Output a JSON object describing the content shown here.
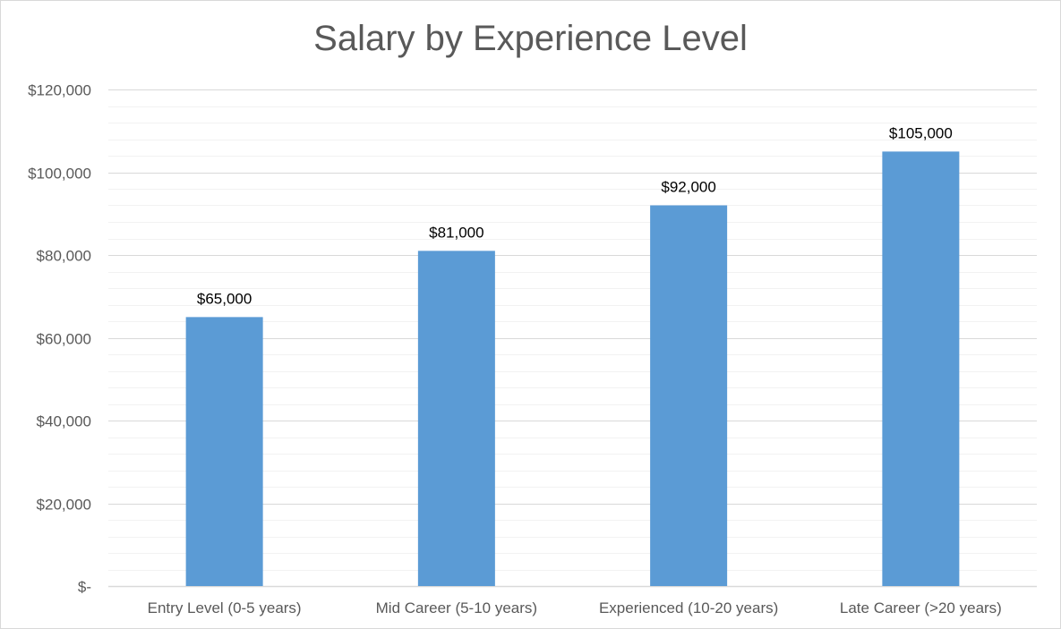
{
  "chart_data": {
    "type": "bar",
    "title": "Salary by Experience Level",
    "categories": [
      "Entry Level (0-5 years)",
      "Mid Career (5-10 years)",
      "Experienced (10-20 years)",
      "Late Career (>20 years)"
    ],
    "values": [
      65000,
      81000,
      92000,
      105000
    ],
    "data_labels": [
      "$65,000",
      "$81,000",
      "$92,000",
      "$105,000"
    ],
    "ylim": [
      0,
      120000
    ],
    "yticks": [
      0,
      20000,
      40000,
      60000,
      80000,
      100000,
      120000
    ],
    "ytick_labels": [
      "$-",
      "$20,000",
      "$40,000",
      "$60,000",
      "$80,000",
      "$100,000",
      "$120,000"
    ],
    "xlabel": "",
    "ylabel": "",
    "grid": true,
    "minor_grid": true,
    "legend": "none",
    "colors": {
      "bar": "#5b9bd5",
      "major_grid": "#d9d9d9",
      "minor_grid": "#f2f2f2",
      "axis_text": "#595959",
      "title": "#595959"
    }
  }
}
